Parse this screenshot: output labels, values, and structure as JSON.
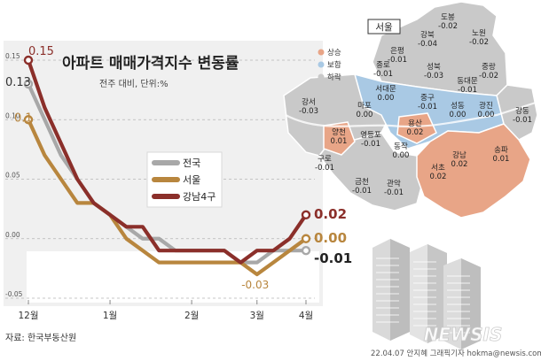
{
  "chart_data": {
    "type": "line",
    "title": "아파트 매매가격지수 변동률",
    "subtitle": "전주 대비, 단위:%",
    "x": [
      0,
      1,
      2,
      3,
      4,
      5,
      6,
      7,
      8,
      9,
      10,
      11,
      12,
      13,
      14,
      15,
      16,
      17
    ],
    "xtick_labels": [
      {
        "x": 0,
        "label": "12월"
      },
      {
        "x": 5,
        "label": "1월"
      },
      {
        "x": 10,
        "label": "2월"
      },
      {
        "x": 14,
        "label": "3월"
      },
      {
        "x": 17,
        "label": "4월"
      }
    ],
    "ytick_labels": [
      "-0.05",
      "0.00",
      "0.05",
      "0.10",
      "0.15"
    ],
    "ylim": [
      -0.05,
      0.15
    ],
    "series": [
      {
        "name": "전국",
        "color": "#a8a8a8",
        "values": [
          0.13,
          0.1,
          0.07,
          0.05,
          0.03,
          0.02,
          0.01,
          0.0,
          0.0,
          -0.01,
          -0.01,
          -0.01,
          -0.01,
          -0.02,
          -0.02,
          -0.01,
          -0.01,
          -0.01
        ],
        "end_label": "-0.01"
      },
      {
        "name": "서울",
        "color": "#b8863e",
        "values": [
          0.1,
          0.07,
          0.05,
          0.03,
          0.03,
          0.02,
          0.0,
          -0.01,
          -0.02,
          -0.02,
          -0.02,
          -0.02,
          -0.02,
          -0.02,
          -0.03,
          -0.02,
          -0.01,
          0.0
        ],
        "end_label": "0.00"
      },
      {
        "name": "강남4구",
        "color": "#8b2f2a",
        "values": [
          0.15,
          0.11,
          0.08,
          0.05,
          0.03,
          0.02,
          0.01,
          0.01,
          -0.01,
          -0.01,
          -0.01,
          -0.01,
          -0.01,
          -0.02,
          -0.01,
          -0.01,
          0.0,
          0.02
        ],
        "end_label": "0.02"
      }
    ],
    "start_labels": [
      {
        "series": "강남4구",
        "label": "0.15"
      },
      {
        "series": "전국",
        "label": "0.13"
      },
      {
        "series": "서울",
        "label": "0.1"
      }
    ],
    "min_label": {
      "series": "서울",
      "x": 14,
      "label": "-0.03"
    },
    "legend": "center",
    "source": "자료: 한국부동산원",
    "credit": "22.04.07 안지혜 그래픽기자 hokma@newsis.com",
    "watermark": "NEWSIS"
  },
  "map": {
    "title": "서울",
    "legend": [
      {
        "label": "상승",
        "color": "#e8a587"
      },
      {
        "label": "보합",
        "color": "#a9c9e4"
      },
      {
        "label": "하락",
        "color": "#c9c9c9"
      }
    ],
    "districts": [
      {
        "name": "도봉",
        "value": "-0.02",
        "status": "하락"
      },
      {
        "name": "노원",
        "value": "-0.02",
        "status": "하락"
      },
      {
        "name": "강북",
        "value": "-0.04",
        "status": "하락"
      },
      {
        "name": "은평",
        "value": "-0.01",
        "status": "하락"
      },
      {
        "name": "성북",
        "value": "-0.03",
        "status": "하락"
      },
      {
        "name": "중랑",
        "value": "-0.02",
        "status": "하락"
      },
      {
        "name": "종로",
        "value": "-0.01",
        "status": "하락"
      },
      {
        "name": "동대문",
        "value": "-0.01",
        "status": "하락"
      },
      {
        "name": "서대문",
        "value": "0.00",
        "status": "보합"
      },
      {
        "name": "중구",
        "value": "-0.01",
        "status": "하락"
      },
      {
        "name": "마포",
        "value": "0.00",
        "status": "보합"
      },
      {
        "name": "성동",
        "value": "0.00",
        "status": "보합"
      },
      {
        "name": "광진",
        "value": "0.00",
        "status": "보합"
      },
      {
        "name": "강서",
        "value": "-0.03",
        "status": "하락"
      },
      {
        "name": "용산",
        "value": "0.02",
        "status": "상승"
      },
      {
        "name": "강동",
        "value": "-0.01",
        "status": "하락"
      },
      {
        "name": "양천",
        "value": "0.01",
        "status": "상승"
      },
      {
        "name": "영등포",
        "value": "-0.01",
        "status": "하락"
      },
      {
        "name": "동작",
        "value": "0.00",
        "status": "보합"
      },
      {
        "name": "구로",
        "value": "-0.01",
        "status": "하락"
      },
      {
        "name": "강남",
        "value": "0.02",
        "status": "상승"
      },
      {
        "name": "송파",
        "value": "0.01",
        "status": "상승"
      },
      {
        "name": "서초",
        "value": "0.02",
        "status": "상승"
      },
      {
        "name": "금천",
        "value": "-0.01",
        "status": "하락"
      },
      {
        "name": "관악",
        "value": "-0.01",
        "status": "하락"
      }
    ]
  }
}
